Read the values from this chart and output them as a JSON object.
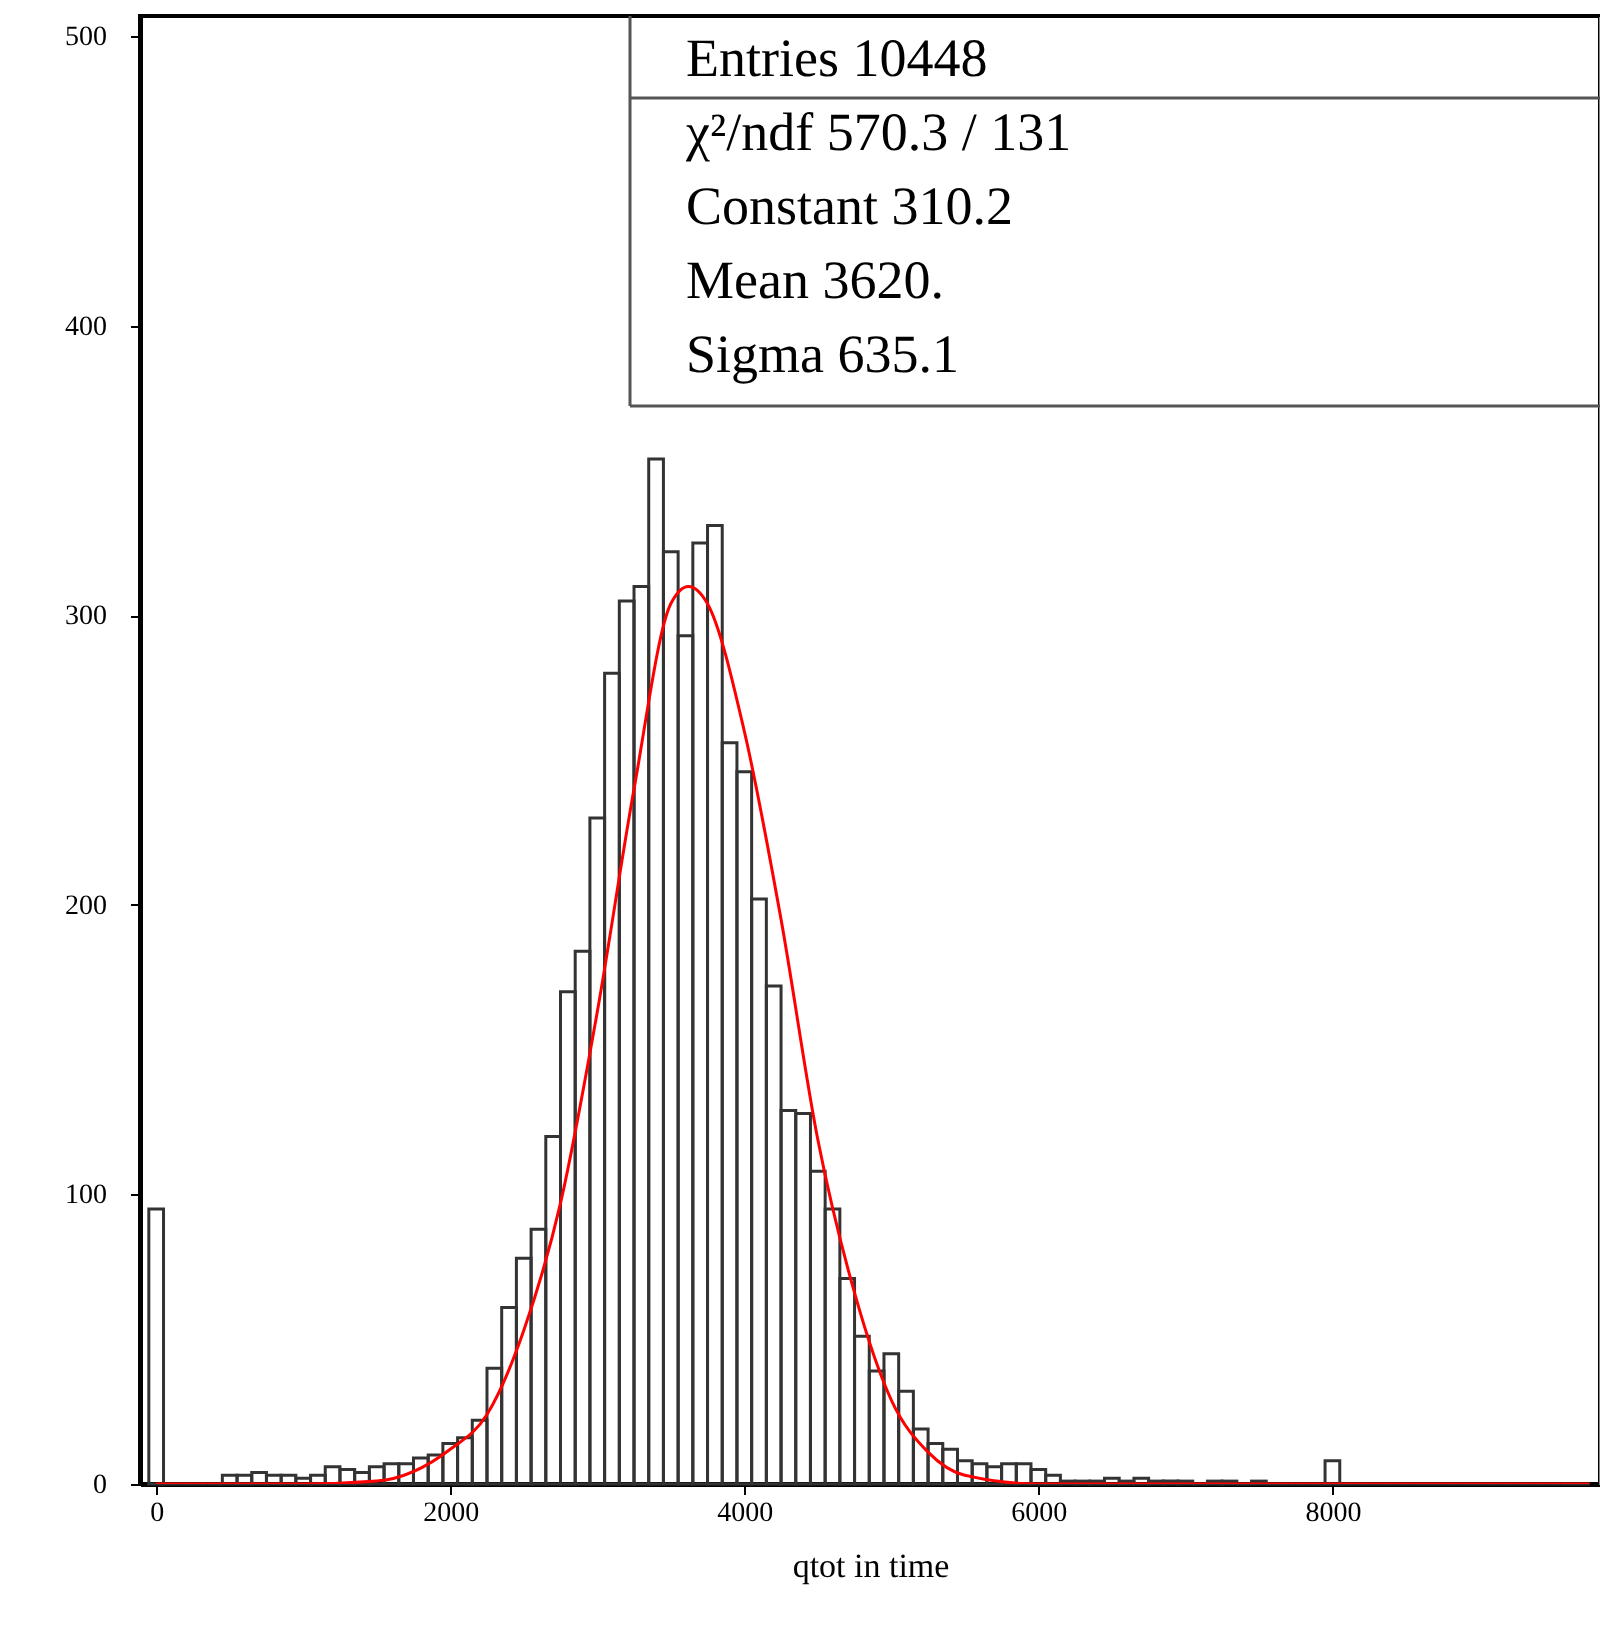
{
  "chart_data": {
    "type": "histogram",
    "xlabel": "qtot  in time",
    "bins": [
      -50,
      50,
      150,
      250,
      350,
      450,
      550,
      650,
      750,
      850,
      950,
      1050,
      1150,
      1250,
      1350,
      1450,
      1550,
      1650,
      1750,
      1850,
      1950,
      2050,
      2150,
      2250,
      2350,
      2450,
      2550,
      2650,
      2750,
      2850,
      2950,
      3050,
      3150,
      3250,
      3350,
      3450,
      3550,
      3650,
      3750,
      3850,
      3950,
      4050,
      4150,
      4250,
      4350,
      4450,
      4550,
      4650,
      4750,
      4850,
      4950,
      5050,
      5150,
      5250,
      5350,
      5450,
      5550,
      5650,
      5750,
      5850,
      5950,
      6050,
      6150,
      6250,
      6350,
      6450,
      6550,
      6650,
      6750,
      6850,
      6950,
      7050,
      7150,
      7250,
      7350,
      7450,
      7550,
      7650,
      7750,
      7850,
      7950,
      8050,
      8150,
      8250,
      8350,
      8450,
      8550,
      8650,
      8750,
      8850,
      8950,
      9050,
      9150,
      9250,
      9350,
      9450,
      9550,
      9650,
      9750
    ],
    "values": [
      95,
      0,
      0,
      0,
      0,
      3,
      3,
      4,
      3,
      3,
      2,
      3,
      6,
      5,
      4,
      6,
      7,
      7,
      9,
      10,
      14,
      16,
      22,
      40,
      61,
      78,
      88,
      120,
      170,
      184,
      230,
      280,
      305,
      310,
      354,
      322,
      293,
      325,
      331,
      256,
      246,
      202,
      172,
      129,
      128,
      108,
      95,
      71,
      51,
      39,
      45,
      32,
      19,
      14,
      12,
      8,
      7,
      6,
      7,
      7,
      5,
      3,
      1,
      1,
      1,
      2,
      1,
      2,
      1,
      1,
      1,
      0,
      1,
      1,
      0,
      1,
      0,
      0,
      0,
      0,
      8,
      0,
      0,
      0,
      0,
      0,
      0,
      0,
      0,
      0,
      0,
      0,
      0,
      0,
      0,
      0,
      0,
      0
    ],
    "color": "#333333",
    "series": [
      {
        "type": "line",
        "color": "#ff0000",
        "x": [
          0,
          1000,
          1500,
          2000,
          2250,
          2500,
          2750,
          3000,
          3250,
          3500,
          3620,
          3750,
          4000,
          4250,
          4500,
          4750,
          5000,
          5250,
          5500,
          6000,
          8000,
          9750
        ],
        "values": [
          0,
          0,
          1,
          12,
          24,
          53,
          97,
          163,
          240,
          304,
          310,
          304,
          260,
          195,
          119,
          66,
          29,
          11,
          3,
          0,
          0,
          0
        ]
      }
    ],
    "xlim": [
      -110,
      9820
    ],
    "ylim": [
      0,
      507
    ],
    "xticks": [
      0,
      2000,
      4000,
      6000,
      8000
    ],
    "yticks": [
      0,
      100,
      200,
      300,
      400,
      500
    ],
    "annotations": [
      "Entries 10448",
      "χ²/ndf 570.3 / 131",
      "Constant 310.2",
      "Mean 3620.",
      "Sigma 635.1"
    ]
  }
}
